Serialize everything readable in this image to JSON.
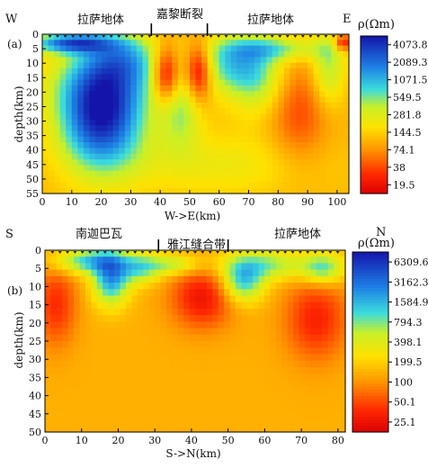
{
  "chart_data": [
    {
      "type": "heatmap",
      "panel_label": "(a)",
      "left_dir": "W",
      "right_dir": "E",
      "region_labels": [
        "拉萨地体",
        "嘉黎断裂",
        "拉萨地体"
      ],
      "fault_positions_km": [
        37,
        56
      ],
      "xlabel": "W->E(km)",
      "ylabel": "depth(km)",
      "xlim": [
        0,
        104
      ],
      "ylim": [
        55,
        0
      ],
      "xticks": [
        "0",
        "10",
        "20",
        "30",
        "40",
        "50",
        "60",
        "70",
        "80",
        "90",
        "100"
      ],
      "yticks": [
        "0",
        "5",
        "10",
        "15",
        "20",
        "25",
        "30",
        "35",
        "40",
        "45",
        "50",
        "55"
      ],
      "colorbar_title": "ρ(Ωm)",
      "colorbar_ticks": [
        "4073.8",
        "2089.3",
        "1071.5",
        "549.5",
        "281.8",
        "144.5",
        "74.1",
        "38",
        "19.5"
      ],
      "log_range": [
        1.2,
        3.7
      ],
      "background_log": 2.05,
      "anomalies": [
        {
          "x": 20,
          "y": 28,
          "sx": 10,
          "sy": 13,
          "amp": 1.6
        },
        {
          "x": 23,
          "y": 16,
          "sx": 16,
          "sy": 8,
          "amp": 0.4
        },
        {
          "x": 10,
          "y": 3,
          "sx": 10,
          "sy": 2.5,
          "amp": 1.2
        },
        {
          "x": 28,
          "y": 8,
          "sx": 9,
          "sy": 6,
          "amp": 0.6
        },
        {
          "x": 42,
          "y": 14,
          "sx": 3.2,
          "sy": 7,
          "amp": -1.0
        },
        {
          "x": 53,
          "y": 13,
          "sx": 3.2,
          "sy": 7,
          "amp": -1.0
        },
        {
          "x": 47,
          "y": 27,
          "sx": 5,
          "sy": 9,
          "amp": 0.55
        },
        {
          "x": 64,
          "y": 10,
          "sx": 9,
          "sy": 7,
          "amp": 0.7
        },
        {
          "x": 73,
          "y": 16,
          "sx": 7,
          "sy": 9,
          "amp": 0.5
        },
        {
          "x": 87,
          "y": 27,
          "sx": 7,
          "sy": 13,
          "amp": -0.45
        },
        {
          "x": 97,
          "y": 12,
          "sx": 4,
          "sy": 9,
          "amp": 0.6
        },
        {
          "x": 80,
          "y": 5,
          "sx": 12,
          "sy": 3,
          "amp": 0.6
        },
        {
          "x": 102,
          "y": 3,
          "sx": 2,
          "sy": 2,
          "amp": -0.8
        },
        {
          "x": 60,
          "y": 45,
          "sx": 25,
          "sy": 8,
          "amp": 0.3
        }
      ]
    },
    {
      "type": "heatmap",
      "panel_label": "(b)",
      "left_dir": "S",
      "right_dir": "N",
      "region_labels": [
        "南迦巴瓦",
        "雅江缝合带",
        "拉萨地体"
      ],
      "fault_positions_km": [
        31,
        50
      ],
      "xlabel": "S->N(km)",
      "ylabel": "depth(km)",
      "xlim": [
        0,
        82
      ],
      "ylim": [
        50,
        0
      ],
      "xticks": [
        "0",
        "10",
        "20",
        "30",
        "40",
        "50",
        "60",
        "70",
        "80"
      ],
      "yticks": [
        "0",
        "5",
        "10",
        "15",
        "20",
        "25",
        "30",
        "35",
        "40",
        "45",
        "50"
      ],
      "colorbar_title": "ρ(Ωm)",
      "colorbar_ticks": [
        "6309.6",
        "3162.3",
        "1584.9",
        "794.3",
        "398.1",
        "199.5",
        "100",
        "50.1",
        "25.1"
      ],
      "log_range": [
        1.25,
        3.9
      ],
      "background_log": 2.12,
      "anomalies": [
        {
          "x": 3,
          "y": 15,
          "sx": 4,
          "sy": 8,
          "amp": -0.55
        },
        {
          "x": 18,
          "y": 8,
          "sx": 3.5,
          "sy": 5,
          "amp": 1.1
        },
        {
          "x": 12,
          "y": 3,
          "sx": 7,
          "sy": 2.5,
          "amp": 0.9
        },
        {
          "x": 26,
          "y": 5,
          "sx": 4,
          "sy": 3,
          "amp": 0.7
        },
        {
          "x": 43,
          "y": 13,
          "sx": 6,
          "sy": 6,
          "amp": -0.7
        },
        {
          "x": 54,
          "y": 9,
          "sx": 4,
          "sy": 4,
          "amp": 0.9
        },
        {
          "x": 60,
          "y": 4,
          "sx": 9,
          "sy": 3,
          "amp": 0.7
        },
        {
          "x": 74,
          "y": 19,
          "sx": 6,
          "sy": 8,
          "amp": -0.6
        },
        {
          "x": 76,
          "y": 5,
          "sx": 4,
          "sy": 3,
          "amp": 0.8
        },
        {
          "x": 35,
          "y": 4,
          "sx": 5,
          "sy": 2,
          "amp": 0.6
        }
      ]
    }
  ]
}
